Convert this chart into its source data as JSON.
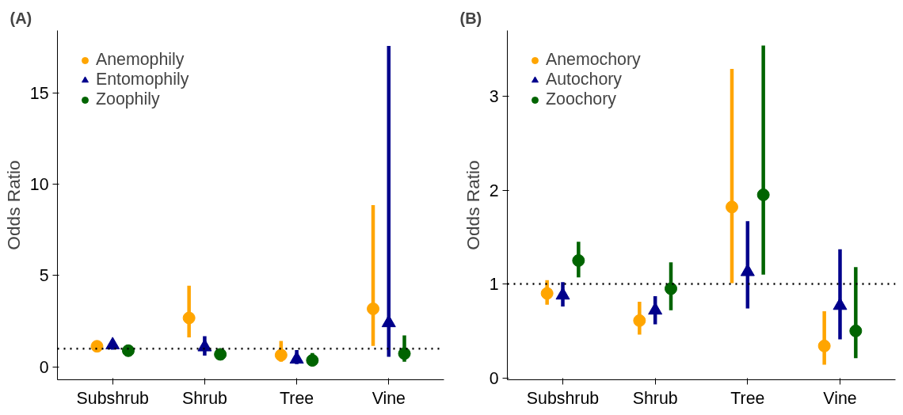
{
  "chart_data": [
    {
      "type": "scatter",
      "title": "(A)",
      "ylabel": "Odds Ratio",
      "categories": [
        "Subshrub",
        "Shrub",
        "Tree",
        "Vine"
      ],
      "ylim": [
        -0.7,
        18.4
      ],
      "yticks": [
        0,
        5,
        10,
        15
      ],
      "grid": false,
      "legend": "top left",
      "series": [
        {
          "name": "Anemophily",
          "color": "#ffa500",
          "marker": "circle",
          "values": [
            1.13,
            2.68,
            0.65,
            3.18
          ],
          "errors": [
            [
              0.89,
              1.42
            ],
            [
              1.62,
              4.44
            ],
            [
              0.29,
              1.42
            ],
            [
              1.15,
              8.85
            ]
          ]
        },
        {
          "name": "Entomophily",
          "color": "#00008b",
          "marker": "triangle",
          "values": [
            1.2,
            1.09,
            0.42,
            2.41
          ],
          "errors": [
            [
              0.95,
              1.42
            ],
            [
              0.62,
              1.68
            ],
            [
              0.16,
              0.92
            ],
            [
              0.56,
              17.56
            ]
          ]
        },
        {
          "name": "Zoophily",
          "color": "#006400",
          "marker": "circle",
          "values": [
            0.89,
            0.69,
            0.36,
            0.73
          ],
          "errors": [
            [
              0.8,
              0.98
            ],
            [
              0.49,
              0.95
            ],
            [
              0.16,
              0.76
            ],
            [
              0.29,
              1.72
            ]
          ]
        }
      ],
      "ref_lines": [
        {
          "axis": "y",
          "value": 1,
          "label": null,
          "line_style": "dotted",
          "color": "#000000"
        }
      ]
    },
    {
      "type": "scatter",
      "title": "(B)",
      "ylabel": "Odds Ratio",
      "categories": [
        "Subshrub",
        "Shrub",
        "Tree",
        "Vine"
      ],
      "ylim": [
        -0.02,
        3.7
      ],
      "yticks": [
        0,
        1,
        2,
        3
      ],
      "grid": false,
      "legend": "top left",
      "series": [
        {
          "name": "Anemochory",
          "color": "#ffa500",
          "marker": "circle",
          "values": [
            0.9,
            0.61,
            1.82,
            0.34
          ],
          "errors": [
            [
              0.78,
              1.04
            ],
            [
              0.46,
              0.81
            ],
            [
              1.01,
              3.29
            ],
            [
              0.14,
              0.71
            ]
          ]
        },
        {
          "name": "Autochory",
          "color": "#00008b",
          "marker": "triangle",
          "values": [
            0.88,
            0.72,
            1.13,
            0.77
          ],
          "errors": [
            [
              0.76,
              1.02
            ],
            [
              0.57,
              0.87
            ],
            [
              0.74,
              1.67
            ],
            [
              0.41,
              1.37
            ]
          ]
        },
        {
          "name": "Zoochory",
          "color": "#006400",
          "marker": "circle",
          "values": [
            1.25,
            0.95,
            1.95,
            0.5
          ],
          "errors": [
            [
              1.07,
              1.45
            ],
            [
              0.72,
              1.23
            ],
            [
              1.1,
              3.54
            ],
            [
              0.21,
              1.18
            ]
          ]
        }
      ],
      "ref_lines": [
        {
          "axis": "y",
          "value": 1,
          "label": null,
          "line_style": "dotted",
          "color": "#000000"
        }
      ]
    }
  ]
}
